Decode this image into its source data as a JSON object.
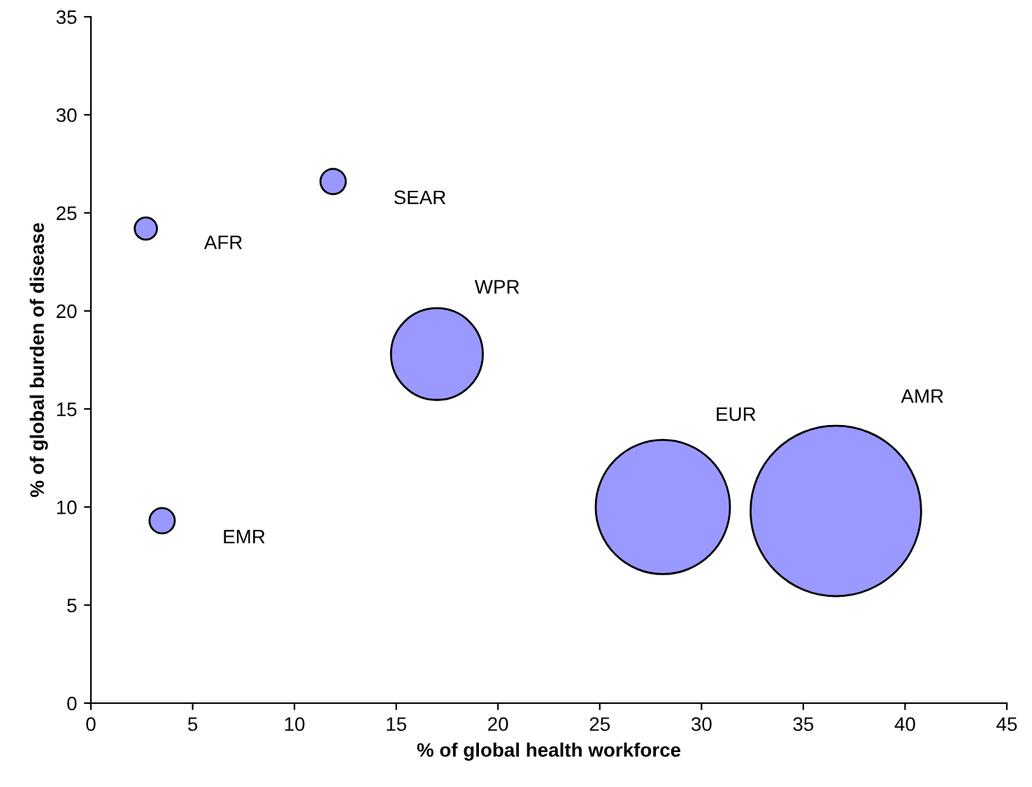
{
  "chart_data": {
    "type": "bubble",
    "xlabel": "% of global health workforce",
    "ylabel": "% of global burden of disease",
    "series": [
      {
        "name": "AFR",
        "color": "#9999ff",
        "x": [
          2.7
        ],
        "values": [
          24.2
        ],
        "sizes": [
          0.017
        ]
      },
      {
        "name": "SEAR",
        "color": "#9999ff",
        "x": [
          11.9
        ],
        "values": [
          26.6
        ],
        "sizes": [
          0.022
        ]
      },
      {
        "name": "WPR",
        "color": "#9999ff",
        "x": [
          17.0
        ],
        "values": [
          17.8
        ],
        "sizes": [
          0.29
        ]
      },
      {
        "name": "EMR",
        "color": "#9999ff",
        "x": [
          3.5
        ],
        "values": [
          9.3
        ],
        "sizes": [
          0.022
        ]
      },
      {
        "name": "EUR",
        "color": "#9999ff",
        "x": [
          28.1
        ],
        "values": [
          10.0
        ],
        "sizes": [
          0.62
        ]
      },
      {
        "name": "AMR",
        "color": "#9999ff",
        "x": [
          36.6
        ],
        "values": [
          9.8
        ],
        "sizes": [
          1
        ]
      }
    ],
    "xlim": [
      0,
      45
    ],
    "ylim": [
      0,
      35
    ],
    "xticks": [
      0,
      5,
      10,
      15,
      20,
      25,
      30,
      35,
      40,
      45
    ],
    "yticks": [
      0,
      5,
      10,
      15,
      20,
      25,
      30,
      35
    ],
    "grid": false,
    "legend": false
  }
}
